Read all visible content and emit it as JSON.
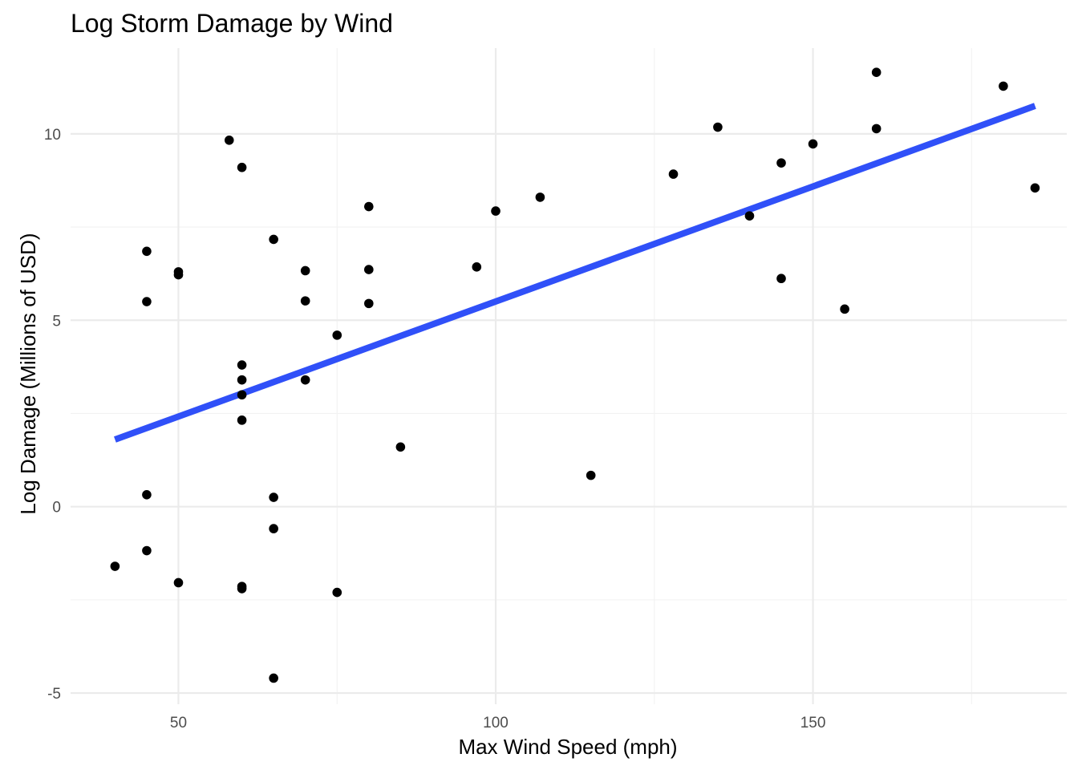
{
  "chart_data": {
    "type": "scatter",
    "title": "Log Storm Damage by Wind",
    "xlabel": "Max Wind Speed (mph)",
    "ylabel": "Log Damage (Millions of USD)",
    "xlim": [
      33,
      190
    ],
    "ylim": [
      -5.3,
      12.3
    ],
    "x_ticks": [
      50,
      100,
      150
    ],
    "x_tick_labels": [
      "50",
      "100",
      "150"
    ],
    "x_minor_ticks": [
      75,
      125,
      175
    ],
    "y_ticks": [
      -5,
      0,
      5,
      10
    ],
    "y_tick_labels": [
      "-5",
      "0",
      "5",
      "10"
    ],
    "y_minor_ticks": [
      -2.5,
      2.5,
      7.5
    ],
    "grid": true,
    "legend": "none",
    "point_color": "#000000",
    "trend_color": "#3050f8",
    "series": [
      {
        "points": [
          {
            "x": 40,
            "y": -1.6
          },
          {
            "x": 45,
            "y": 6.85
          },
          {
            "x": 45,
            "y": 5.5
          },
          {
            "x": 45,
            "y": 0.32
          },
          {
            "x": 45,
            "y": -1.18
          },
          {
            "x": 50,
            "y": 6.3
          },
          {
            "x": 50,
            "y": 6.22
          },
          {
            "x": 50,
            "y": -2.04
          },
          {
            "x": 58,
            "y": 9.83
          },
          {
            "x": 60,
            "y": 9.1
          },
          {
            "x": 60,
            "y": 3.8
          },
          {
            "x": 60,
            "y": 3.4
          },
          {
            "x": 60,
            "y": 3.0
          },
          {
            "x": 60,
            "y": 2.32
          },
          {
            "x": 60,
            "y": -2.14
          },
          {
            "x": 60,
            "y": -2.2
          },
          {
            "x": 65,
            "y": 7.17
          },
          {
            "x": 65,
            "y": 0.25
          },
          {
            "x": 65,
            "y": -0.59
          },
          {
            "x": 65,
            "y": -4.6
          },
          {
            "x": 70,
            "y": 6.33
          },
          {
            "x": 70,
            "y": 5.52
          },
          {
            "x": 70,
            "y": 3.4
          },
          {
            "x": 75,
            "y": 4.6
          },
          {
            "x": 75,
            "y": -2.3
          },
          {
            "x": 80,
            "y": 8.05
          },
          {
            "x": 80,
            "y": 6.36
          },
          {
            "x": 80,
            "y": 5.45
          },
          {
            "x": 85,
            "y": 1.6
          },
          {
            "x": 97,
            "y": 6.43
          },
          {
            "x": 100,
            "y": 7.93
          },
          {
            "x": 107,
            "y": 8.3
          },
          {
            "x": 115,
            "y": 0.84
          },
          {
            "x": 128,
            "y": 8.92
          },
          {
            "x": 135,
            "y": 10.18
          },
          {
            "x": 140,
            "y": 7.8
          },
          {
            "x": 145,
            "y": 9.22
          },
          {
            "x": 145,
            "y": 6.12
          },
          {
            "x": 150,
            "y": 9.73
          },
          {
            "x": 155,
            "y": 5.3
          },
          {
            "x": 160,
            "y": 11.65
          },
          {
            "x": 160,
            "y": 10.14
          },
          {
            "x": 180,
            "y": 11.28
          },
          {
            "x": 185,
            "y": 8.55
          }
        ]
      }
    ],
    "trend_line": {
      "x": [
        40,
        185
      ],
      "y": [
        1.8,
        10.75
      ]
    }
  }
}
